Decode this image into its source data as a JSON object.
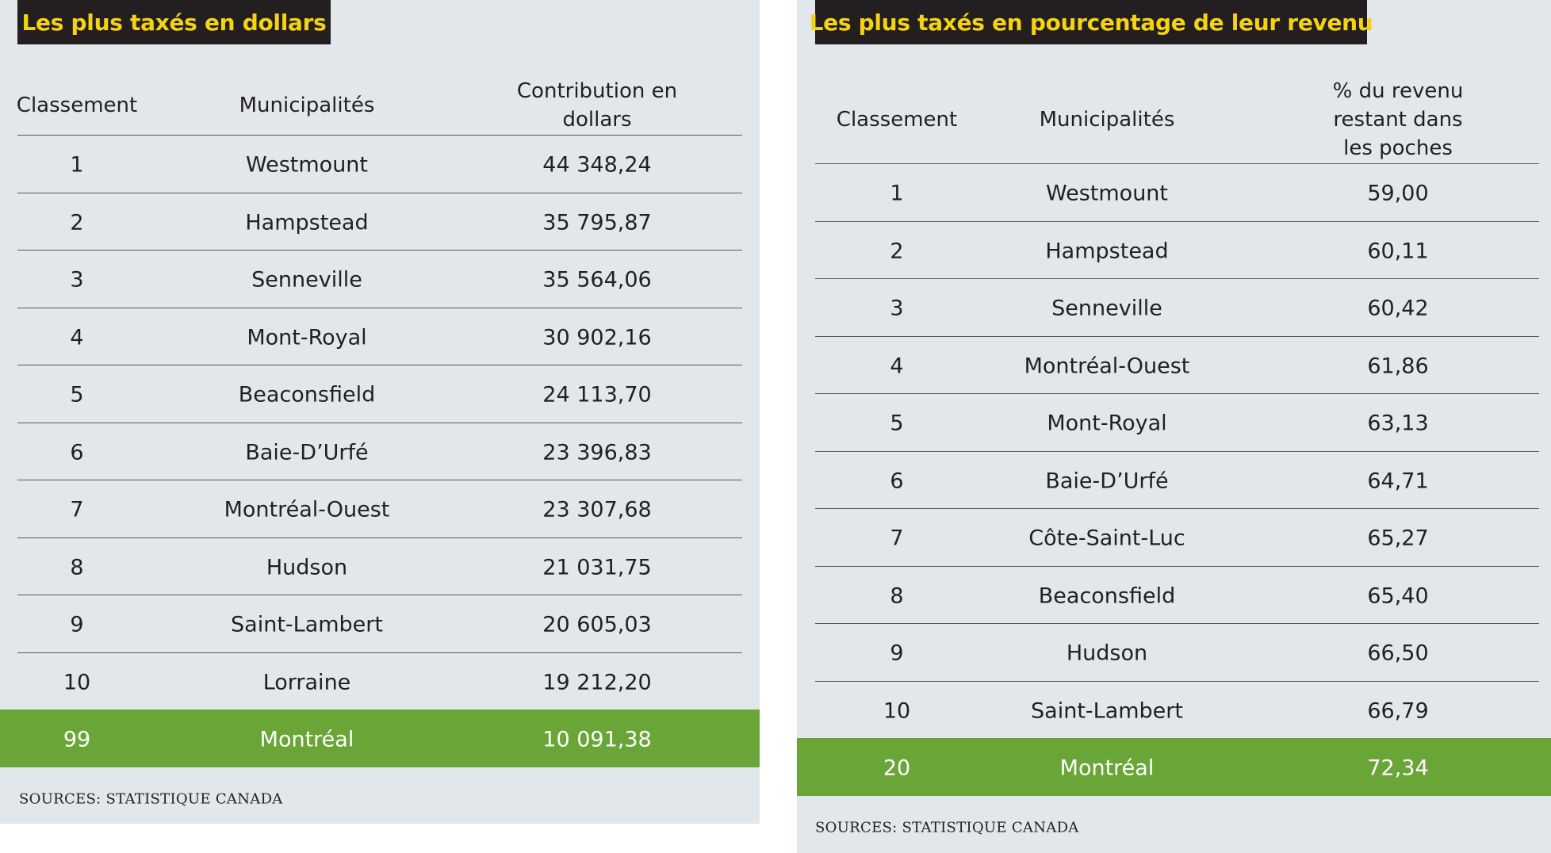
{
  "tables": [
    {
      "title": "Les plus taxés en dollars",
      "columns": [
        "Classement",
        "Municipalités",
        "Contribution en dollars"
      ],
      "rows": [
        [
          "1",
          "Westmount",
          "44 348,24"
        ],
        [
          "2",
          "Hampstead",
          "35 795,87"
        ],
        [
          "3",
          "Senneville",
          "35 564,06"
        ],
        [
          "4",
          "Mont-Royal",
          "30 902,16"
        ],
        [
          "5",
          "Beaconsfield",
          "24 113,70"
        ],
        [
          "6",
          "Baie-D’Urfé",
          "23 396,83"
        ],
        [
          "7",
          "Montréal-Ouest",
          "23 307,68"
        ],
        [
          "8",
          "Hudson",
          "21 031,75"
        ],
        [
          "9",
          "Saint-Lambert",
          "20 605,03"
        ],
        [
          "10",
          "Lorraine",
          "19 212,20"
        ]
      ],
      "highlight_row": [
        "99",
        "Montréal",
        "10 091,38"
      ],
      "source": "SOURCES: STATISTIQUE CANADA"
    },
    {
      "title": "Les plus taxés en pourcentage de leur revenu",
      "columns": [
        "Classement",
        "Municipalités",
        "% du revenu\nrestant dans les poches"
      ],
      "rows": [
        [
          "1",
          "Westmount",
          "59,00"
        ],
        [
          "2",
          "Hampstead",
          "60,11"
        ],
        [
          "3",
          "Senneville",
          "60,42"
        ],
        [
          "4",
          "Montréal-Ouest",
          "61,86"
        ],
        [
          "5",
          "Mont-Royal",
          "63,13"
        ],
        [
          "6",
          "Baie-D’Urfé",
          "64,71"
        ],
        [
          "7",
          "Côte-Saint-Luc",
          "65,27"
        ],
        [
          "8",
          "Beaconsfield",
          "65,40"
        ],
        [
          "9",
          "Hudson",
          "66,50"
        ],
        [
          "10",
          "Saint-Lambert",
          "66,79"
        ]
      ],
      "highlight_row": [
        "20",
        "Montréal",
        "72,34"
      ],
      "source": "SOURCES: STATISTIQUE CANADA"
    }
  ]
}
